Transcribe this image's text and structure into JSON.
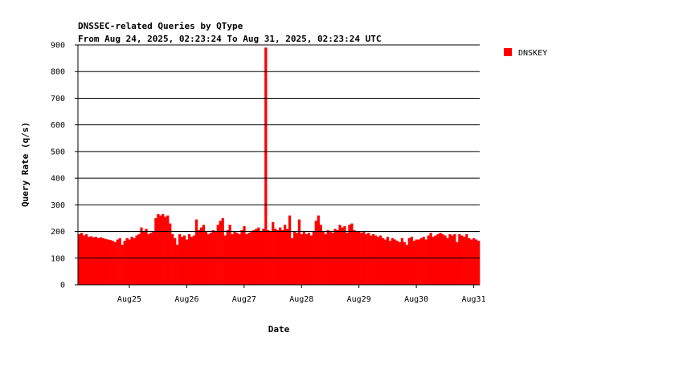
{
  "chart_data": {
    "type": "bar",
    "title": "DNSSEC-related Queries by QType",
    "subtitle": "From Aug 24, 2025, 02:23:24 To Aug 31, 2025, 02:23:24 UTC",
    "x_label": "Date",
    "y_label": "Query Rate (q/s)",
    "categories": [
      null,
      null,
      null,
      null,
      null,
      null,
      null,
      null,
      null,
      null,
      null,
      null,
      null,
      null,
      null,
      null,
      null,
      null,
      null,
      null,
      null,
      "Aug25",
      null,
      null,
      null,
      null,
      null,
      null,
      null,
      null,
      null,
      null,
      null,
      null,
      null,
      null,
      null,
      null,
      null,
      null,
      null,
      null,
      null,
      null,
      null,
      "Aug26",
      null,
      null,
      null,
      null,
      null,
      null,
      null,
      null,
      null,
      null,
      null,
      null,
      null,
      null,
      null,
      null,
      null,
      null,
      null,
      null,
      null,
      null,
      null,
      "Aug27",
      null,
      null,
      null,
      null,
      null,
      null,
      null,
      null,
      null,
      null,
      null,
      null,
      null,
      null,
      null,
      null,
      null,
      null,
      null,
      null,
      null,
      null,
      null,
      "Aug28",
      null,
      null,
      null,
      null,
      null,
      null,
      null,
      null,
      null,
      null,
      null,
      null,
      null,
      null,
      null,
      null,
      null,
      null,
      null,
      null,
      null,
      null,
      null,
      "Aug29",
      null,
      null,
      null,
      null,
      null,
      null,
      null,
      null,
      null,
      null,
      null,
      null,
      null,
      null,
      null,
      null,
      null,
      null,
      null,
      null,
      null,
      null,
      null,
      "Aug30",
      null,
      null,
      null,
      null,
      null,
      null,
      null,
      null,
      null,
      null,
      null,
      null,
      null,
      null,
      null,
      null,
      null,
      null,
      null,
      null,
      null,
      null,
      null,
      "Aug31",
      null,
      null
    ],
    "series": [
      {
        "name": "DNSKEY",
        "color": "#ff0000",
        "values": [
          190,
          195,
          185,
          190,
          180,
          182,
          178,
          180,
          175,
          178,
          175,
          172,
          170,
          168,
          165,
          160,
          170,
          175,
          150,
          165,
          175,
          170,
          180,
          175,
          185,
          190,
          215,
          200,
          210,
          190,
          195,
          200,
          250,
          265,
          260,
          265,
          255,
          260,
          230,
          190,
          175,
          150,
          190,
          180,
          185,
          170,
          190,
          180,
          185,
          245,
          205,
          215,
          225,
          200,
          190,
          195,
          205,
          200,
          225,
          240,
          250,
          185,
          205,
          225,
          190,
          200,
          195,
          190,
          205,
          220,
          190,
          195,
          200,
          205,
          210,
          215,
          200,
          210,
          890,
          205,
          200,
          235,
          210,
          205,
          215,
          205,
          225,
          210,
          260,
          175,
          200,
          195,
          245,
          190,
          200,
          190,
          195,
          185,
          200,
          240,
          260,
          225,
          200,
          190,
          205,
          200,
          195,
          210,
          205,
          225,
          215,
          220,
          195,
          225,
          230,
          205,
          200,
          200,
          195,
          200,
          190,
          195,
          185,
          190,
          185,
          180,
          185,
          175,
          170,
          180,
          165,
          175,
          170,
          165,
          160,
          175,
          160,
          150,
          175,
          180,
          165,
          170,
          170,
          175,
          180,
          170,
          185,
          195,
          180,
          185,
          190,
          195,
          190,
          185,
          175,
          190,
          185,
          190,
          160,
          190,
          185,
          180,
          190,
          175,
          170,
          175,
          170,
          165
        ]
      }
    ],
    "ylim": [
      0,
      900
    ],
    "yticks": [
      0,
      100,
      200,
      300,
      400,
      500,
      600,
      700,
      800,
      900
    ],
    "grid": true
  }
}
